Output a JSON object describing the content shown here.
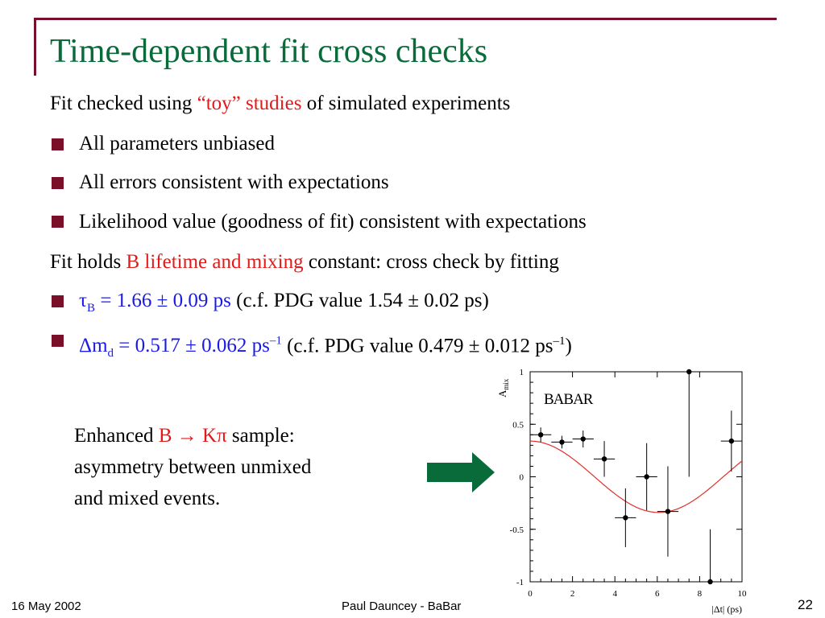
{
  "slide": {
    "title": "Time-dependent fit cross checks",
    "intro1": {
      "pre": "Fit checked using ",
      "hl": "“toy” studies",
      "post": " of simulated experiments"
    },
    "bullets1": [
      "All parameters unbiased",
      "All errors consistent with expectations",
      "Likelihood value (goodness of fit) consistent with expectations"
    ],
    "intro2": {
      "pre": "Fit holds ",
      "hl": "B lifetime and mixing",
      "post": " constant: cross check by fitting"
    },
    "tau_line": {
      "sym": "τ",
      "sub": "B",
      "val": " = 1.66 ± 0.09 ps",
      "note": "  (c.f. PDG value  1.54 ± 0.02 ps)"
    },
    "dm_line": {
      "sym": "Δm",
      "sub": "d",
      "val": " = 0.517 ± 0.062 ps",
      "sup": "–1",
      "note_pre": " (c.f. PDG value  0.479 ± 0.012 ps",
      "note_sup": "–1",
      "note_post": ")"
    },
    "caption": {
      "l1_pre": "Enhanced ",
      "l1_hl": "B → Kπ",
      "l1_post": " sample:",
      "l2": "asymmetry between unmixed",
      "l3": "and mixed events."
    },
    "arrow_color": "#0a6b3a",
    "bullet_color": "#7a0f2a",
    "footer": {
      "date": "16 May 2002",
      "author": "Paul Dauncey - BaBar",
      "page": "22"
    }
  },
  "chart_data": {
    "type": "scatter",
    "ylabel": "A_mix",
    "xlabel": "|Δt| (ps)",
    "xlim": [
      0,
      10
    ],
    "ylim": [
      -1,
      1
    ],
    "xticks": [
      "0",
      "2",
      "4",
      "6",
      "8",
      "10"
    ],
    "yticks": [
      "-1",
      "-0.5",
      "0",
      "0.5",
      "1"
    ],
    "logo": "BABAR",
    "points": [
      {
        "x": 0.5,
        "y": 0.4,
        "xerr": 0.5,
        "yerr": 0.07
      },
      {
        "x": 1.5,
        "y": 0.33,
        "xerr": 0.5,
        "yerr": 0.06
      },
      {
        "x": 2.5,
        "y": 0.36,
        "xerr": 0.5,
        "yerr": 0.08
      },
      {
        "x": 3.5,
        "y": 0.17,
        "xerr": 0.5,
        "yerr": 0.17
      },
      {
        "x": 4.5,
        "y": -0.39,
        "xerr": 0.5,
        "yerr": 0.28
      },
      {
        "x": 5.5,
        "y": 0.0,
        "xerr": 0.5,
        "yerr": 0.32
      },
      {
        "x": 6.5,
        "y": -0.33,
        "xerr": 0.5,
        "yerr": 0.43
      },
      {
        "x": 7.5,
        "y": 1.0,
        "xerr": 0.5,
        "yerr": 1.0
      },
      {
        "x": 8.5,
        "y": -1.0,
        "xerr": 0.5,
        "yerr": 0.5
      },
      {
        "x": 9.5,
        "y": 0.34,
        "xerr": 0.5,
        "yerr": 0.29
      }
    ],
    "fit_curve": {
      "amplitude": 0.34,
      "frequency": 0.517,
      "color": "#e0302a"
    }
  }
}
